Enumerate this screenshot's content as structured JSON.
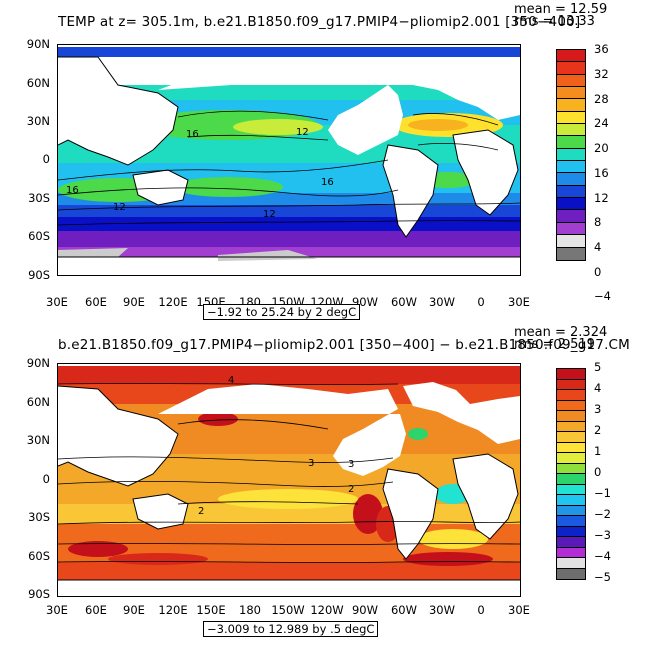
{
  "top": {
    "title": "TEMP at z= 305.1m, b.e21.B1850.f09_g17.PMIP4−pliomip2.001 [350−400]",
    "mean": "mean = 12.59",
    "rms": "rms = 13.33",
    "range": "−1.92 to 25.24 by 2 degC",
    "lat_labels": [
      "90N",
      "60N",
      "30N",
      "0",
      "30S",
      "60S",
      "90S"
    ],
    "lon_labels": [
      "30E",
      "60E",
      "90E",
      "120E",
      "150E",
      "180",
      "150W",
      "120W",
      "90W",
      "60W",
      "30W",
      "0",
      "30E"
    ],
    "colorbar_labels": [
      "36",
      "32",
      "28",
      "24",
      "20",
      "16",
      "12",
      "8",
      "4",
      "0",
      "−4"
    ],
    "colorbar_colors": [
      "#d7191c",
      "#e8341a",
      "#f0611c",
      "#f48c20",
      "#f9b21f",
      "#fde12c",
      "#c9ec3a",
      "#4cd94a",
      "#1fdcc1",
      "#21c0ef",
      "#1f8be8",
      "#1846d6",
      "#0a10c6",
      "#6f1fbf",
      "#a23fd0",
      "#e5e5e5",
      "#777777"
    ],
    "contour_labels": [
      "16",
      "12",
      "16",
      "12",
      "16",
      "12"
    ]
  },
  "bottom": {
    "title": "b.e21.B1850.f09_g17.PMIP4−pliomip2.001 [350−400] − b.e21.B1850.f09_g17.CM",
    "mean": "mean = 2.324",
    "rms": "rms = 2.519",
    "range": "−3.009 to 12.989 by .5 degC",
    "lat_labels": [
      "90N",
      "60N",
      "30N",
      "0",
      "30S",
      "60S",
      "90S"
    ],
    "lon_labels": [
      "30E",
      "60E",
      "90E",
      "120E",
      "150E",
      "180",
      "150W",
      "120W",
      "90W",
      "60W",
      "30W",
      "0",
      "30E"
    ],
    "colorbar_labels": [
      "5",
      "4",
      "3",
      "2",
      "1",
      "0",
      "−1",
      "−2",
      "−3",
      "−4",
      "−5"
    ],
    "colorbar_colors": [
      "#c4101a",
      "#d8281a",
      "#e8471b",
      "#ef6a1c",
      "#f08a22",
      "#f3a82a",
      "#f8c636",
      "#fde23a",
      "#e2ee3c",
      "#8fe03c",
      "#2dd46b",
      "#22e2d2",
      "#20c6ef",
      "#2196e6",
      "#1a5ae0",
      "#0d22c8",
      "#5a1aba",
      "#b22ed4",
      "#e2e2e2",
      "#6e6e6e"
    ],
    "contour_labels": [
      "4",
      "3",
      "3",
      "2",
      "2"
    ]
  }
}
